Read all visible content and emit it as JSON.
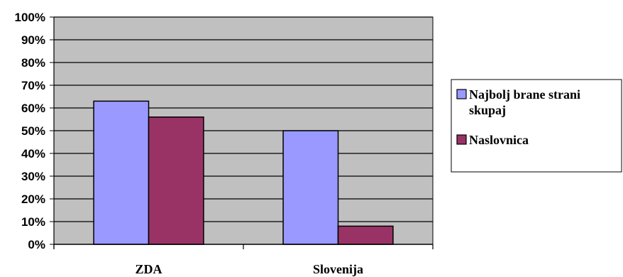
{
  "chart_data": {
    "type": "bar",
    "categories": [
      "ZDA",
      "Slovenija"
    ],
    "series": [
      {
        "name": "Najbolj brane strani skupaj",
        "values": [
          0.63,
          0.5
        ],
        "color": "#9999ff"
      },
      {
        "name": "Naslovnica",
        "values": [
          0.56,
          0.08
        ],
        "color": "#993366"
      }
    ],
    "ylim": [
      0,
      1
    ],
    "yticks": [
      "0%",
      "10%",
      "20%",
      "30%",
      "40%",
      "50%",
      "60%",
      "70%",
      "80%",
      "90%",
      "100%"
    ],
    "plot_background": "#c0c0c0",
    "grid": true,
    "legend": {
      "placement": "right",
      "entries": [
        [
          "Najbolj brane strani",
          "skupaj"
        ],
        [
          "Naslovnica"
        ]
      ]
    },
    "title": "",
    "xlabel": "",
    "ylabel": ""
  }
}
